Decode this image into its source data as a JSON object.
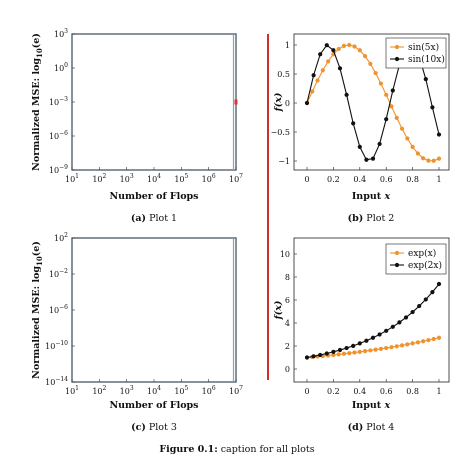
{
  "figure": {
    "caption_label": "Figure 0.1:",
    "caption_text": " caption for all plots"
  },
  "colors": {
    "orange": "#f0922e",
    "black": "#111111",
    "frame": "#8aa0b4",
    "divider": "#d0302a",
    "marker": "#e0343a"
  },
  "chart_data": [
    {
      "id": "plot1",
      "type": "line",
      "caption_label": "(a)",
      "caption_text": " Plot 1",
      "xlabel": "Number of Flops",
      "ylabel_main": "Normalized MSE: log",
      "ylabel_sub": "10",
      "ylabel_paren": "(e)",
      "xscale": "log",
      "yscale": "log",
      "xlim": [
        10,
        10000000
      ],
      "ylim": [
        1e-09,
        1000
      ],
      "x_ticks": [
        {
          "base": "10",
          "exp": "1",
          "value": 1
        },
        {
          "base": "10",
          "exp": "2",
          "value": 2
        },
        {
          "base": "10",
          "exp": "3",
          "value": 3
        },
        {
          "base": "10",
          "exp": "4",
          "value": 4
        },
        {
          "base": "10",
          "exp": "5",
          "value": 5
        },
        {
          "base": "10",
          "exp": "6",
          "value": 6
        },
        {
          "base": "10",
          "exp": "7",
          "value": 7
        }
      ],
      "y_ticks": [
        {
          "base": "10",
          "exp": "3",
          "value": 3
        },
        {
          "base": "10",
          "exp": "0",
          "value": 0
        },
        {
          "base": "10",
          "exp": "−3",
          "value": -3
        },
        {
          "base": "10",
          "exp": "−6",
          "value": -6
        },
        {
          "base": "10",
          "exp": "−9",
          "value": -9
        }
      ],
      "series": [
        {
          "x": [
            10000000
          ],
          "y": [
            0.001
          ]
        }
      ]
    },
    {
      "id": "plot2",
      "type": "line",
      "caption_label": "(b)",
      "caption_text": " Plot 2",
      "xlabel": "Input x",
      "ylabel": "f(x)",
      "xlim": [
        0,
        1
      ],
      "ylim": [
        -1,
        1
      ],
      "x_ticks": [
        "0",
        "0.2",
        "0.4",
        "0.6",
        "0.8",
        "1"
      ],
      "y_ticks": [
        "1",
        "0.5",
        "0",
        "−0.5",
        "−1"
      ],
      "legend_position": "top-right",
      "series": [
        {
          "name": "sin(5x)",
          "color": "#f0922e",
          "x": [
            0,
            0.04,
            0.08,
            0.12,
            0.16,
            0.2,
            0.24,
            0.28,
            0.32,
            0.36,
            0.4,
            0.44,
            0.48,
            0.52,
            0.56,
            0.6,
            0.64,
            0.68,
            0.72,
            0.76,
            0.8,
            0.84,
            0.88,
            0.92,
            0.96,
            1
          ],
          "y": [
            0,
            0.199,
            0.389,
            0.565,
            0.717,
            0.841,
            0.932,
            0.985,
            1.0,
            0.974,
            0.909,
            0.808,
            0.675,
            0.516,
            0.335,
            0.141,
            -0.058,
            -0.256,
            -0.443,
            -0.612,
            -0.757,
            -0.871,
            -0.952,
            -0.994,
            -0.996,
            -0.959
          ]
        },
        {
          "name": "sin(10x)",
          "color": "#111111",
          "x": [
            0,
            0.05,
            0.1,
            0.15,
            0.2,
            0.25,
            0.3,
            0.35,
            0.4,
            0.45,
            0.5,
            0.55,
            0.6,
            0.65,
            0.7,
            0.75,
            0.8,
            0.85,
            0.9,
            0.95,
            1
          ],
          "y": [
            0,
            0.479,
            0.841,
            0.997,
            0.909,
            0.598,
            0.141,
            -0.351,
            -0.757,
            -0.978,
            -0.959,
            -0.706,
            -0.279,
            0.215,
            0.657,
            0.938,
            0.989,
            0.798,
            0.412,
            -0.075,
            -0.544
          ]
        }
      ]
    },
    {
      "id": "plot3",
      "type": "line",
      "caption_label": "(c)",
      "caption_text": " Plot 3",
      "xlabel": "Number of Flops",
      "ylabel_main": "Normalized MSE: log",
      "ylabel_sub": "10",
      "ylabel_paren": "(e)",
      "xscale": "log",
      "yscale": "log",
      "xlim": [
        10,
        10000000
      ],
      "ylim": [
        1e-14,
        100
      ],
      "x_ticks": [
        {
          "base": "10",
          "exp": "1",
          "value": 1
        },
        {
          "base": "10",
          "exp": "2",
          "value": 2
        },
        {
          "base": "10",
          "exp": "3",
          "value": 3
        },
        {
          "base": "10",
          "exp": "4",
          "value": 4
        },
        {
          "base": "10",
          "exp": "5",
          "value": 5
        },
        {
          "base": "10",
          "exp": "6",
          "value": 6
        },
        {
          "base": "10",
          "exp": "7",
          "value": 7
        }
      ],
      "y_ticks": [
        {
          "base": "10",
          "exp": "2",
          "value": 2
        },
        {
          "base": "10",
          "exp": "−2",
          "value": -2
        },
        {
          "base": "10",
          "exp": "−6",
          "value": -6
        },
        {
          "base": "10",
          "exp": "−10",
          "value": -10
        },
        {
          "base": "10",
          "exp": "−14",
          "value": -14
        }
      ],
      "series": []
    },
    {
      "id": "plot4",
      "type": "line",
      "caption_label": "(d)",
      "caption_text": " Plot 4",
      "xlabel": "Input x",
      "ylabel": "f(x)",
      "xlim": [
        0,
        1
      ],
      "ylim": [
        0,
        10
      ],
      "x_ticks": [
        "0",
        "0.2",
        "0.4",
        "0.6",
        "0.8",
        "1"
      ],
      "y_ticks": [
        "10",
        "8",
        "6",
        "4",
        "2",
        "0"
      ],
      "legend_position": "top-right",
      "series": [
        {
          "name": "exp(x)",
          "color": "#f0922e",
          "x": [
            0,
            0.04,
            0.08,
            0.12,
            0.16,
            0.2,
            0.24,
            0.28,
            0.32,
            0.36,
            0.4,
            0.44,
            0.48,
            0.52,
            0.56,
            0.6,
            0.64,
            0.68,
            0.72,
            0.76,
            0.8,
            0.84,
            0.88,
            0.92,
            0.96,
            1
          ],
          "y": [
            1,
            1.041,
            1.083,
            1.127,
            1.174,
            1.221,
            1.271,
            1.323,
            1.377,
            1.433,
            1.492,
            1.553,
            1.616,
            1.682,
            1.751,
            1.822,
            1.896,
            1.974,
            2.054,
            2.138,
            2.226,
            2.316,
            2.411,
            2.509,
            2.612,
            2.718
          ]
        },
        {
          "name": "exp(2x)",
          "color": "#111111",
          "x": [
            0,
            0.05,
            0.1,
            0.15,
            0.2,
            0.25,
            0.3,
            0.35,
            0.4,
            0.45,
            0.5,
            0.55,
            0.6,
            0.65,
            0.7,
            0.75,
            0.8,
            0.85,
            0.9,
            0.95,
            1
          ],
          "y": [
            1,
            1.105,
            1.221,
            1.35,
            1.492,
            1.649,
            1.822,
            2.014,
            2.226,
            2.46,
            2.718,
            3.004,
            3.32,
            3.669,
            4.055,
            4.482,
            4.953,
            5.474,
            6.05,
            6.686,
            7.389
          ]
        }
      ]
    }
  ]
}
